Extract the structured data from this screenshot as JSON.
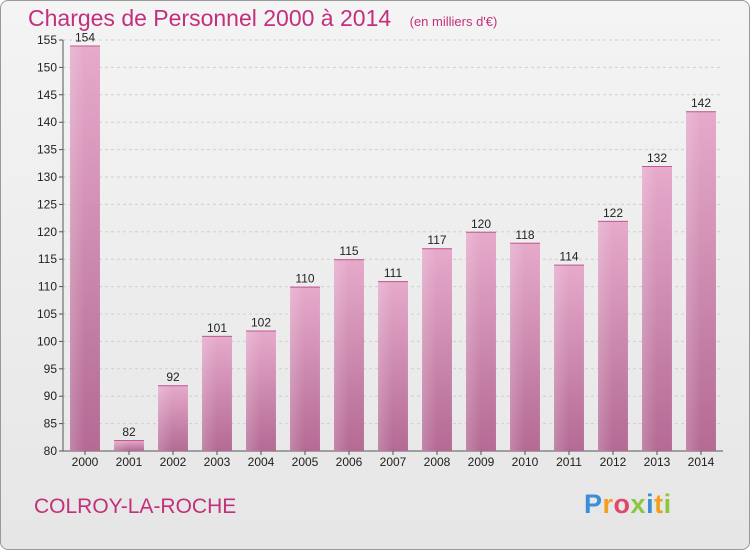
{
  "chart_data": {
    "type": "bar",
    "title": "Charges de Personnel 2000 à 2014",
    "subtitle": "(en milliers d'€)",
    "categories": [
      "2000",
      "2001",
      "2002",
      "2003",
      "2004",
      "2005",
      "2006",
      "2007",
      "2008",
      "2009",
      "2010",
      "2011",
      "2012",
      "2013",
      "2014"
    ],
    "values": [
      154,
      82,
      92,
      101,
      102,
      110,
      115,
      111,
      117,
      120,
      118,
      114,
      122,
      132,
      142
    ],
    "ylim": [
      80,
      155
    ],
    "yticks": [
      80,
      85,
      90,
      95,
      100,
      105,
      110,
      115,
      120,
      125,
      130,
      135,
      140,
      145,
      150,
      155
    ],
    "grid": true,
    "bar_color": "#d98cb5",
    "xlabel": "",
    "ylabel": ""
  },
  "footer": {
    "place": "COLROY-LA-ROCHE",
    "logo_letters": [
      {
        "ch": "P",
        "color": "#3b8fd8"
      },
      {
        "ch": "r",
        "color": "#f29f1f"
      },
      {
        "ch": "o",
        "color": "#e0486a"
      },
      {
        "ch": "x",
        "color": "#8cc63f"
      },
      {
        "ch": "i",
        "color": "#3b8fd8"
      },
      {
        "ch": "t",
        "color": "#f29f1f"
      },
      {
        "ch": "i",
        "color": "#8cc63f"
      }
    ]
  },
  "colors": {
    "title": "#c2307d",
    "bar_light": "#e4a8c9",
    "bar_dark": "#b86d98"
  }
}
